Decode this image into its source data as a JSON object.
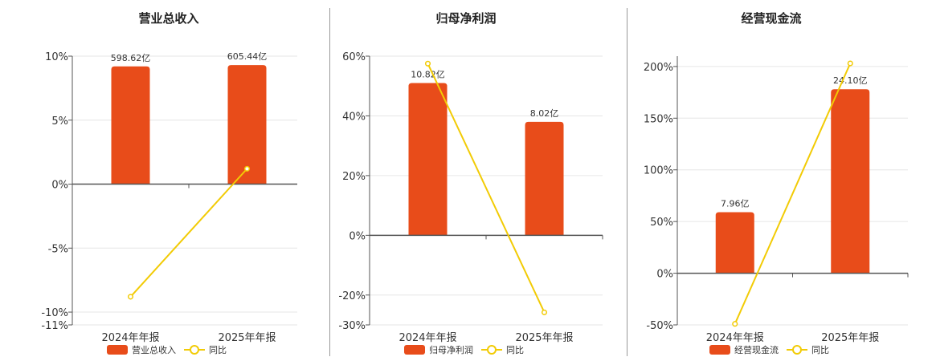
{
  "colors": {
    "bar": "#E84C1A",
    "line": "#F2CB05",
    "grid": "#E6E6E6",
    "axis": "#555555"
  },
  "chart_data": [
    {
      "type": "bar",
      "title": "营业总收入",
      "categories": [
        "2024年年报",
        "2025年年报"
      ],
      "ylim": [
        -11,
        10
      ],
      "yticks": [
        10,
        5,
        0,
        -5,
        -10,
        -11
      ],
      "ytick_labels": [
        "10%",
        "5%",
        "0%",
        "-5%",
        "-10%",
        "-11%"
      ],
      "grid": true,
      "series": [
        {
          "name": "营业总收入",
          "kind": "bar",
          "values": [
            9.2,
            9.3
          ],
          "labels": [
            "598.62亿",
            "605.44亿"
          ]
        },
        {
          "name": "同比",
          "kind": "line",
          "values": [
            -8.8,
            1.2
          ]
        }
      ],
      "legend": {
        "position": "bottom",
        "items": [
          "营业总收入",
          "同比"
        ]
      }
    },
    {
      "type": "bar",
      "title": "归母净利润",
      "categories": [
        "2024年年报",
        "2025年年报"
      ],
      "ylim": [
        -30,
        60
      ],
      "yticks": [
        60,
        40,
        20,
        0,
        -20,
        -30
      ],
      "ytick_labels": [
        "60%",
        "40%",
        "20%",
        "0%",
        "-20%",
        "-30%"
      ],
      "grid": true,
      "series": [
        {
          "name": "归母净利润",
          "kind": "bar",
          "values": [
            51,
            38
          ],
          "labels": [
            "10.82亿",
            "8.02亿"
          ]
        },
        {
          "name": "同比",
          "kind": "line",
          "values": [
            57.5,
            -25.8
          ]
        }
      ],
      "legend": {
        "position": "bottom",
        "items": [
          "归母净利润",
          "同比"
        ]
      }
    },
    {
      "type": "bar",
      "title": "经营现金流",
      "categories": [
        "2024年年报",
        "2025年年报"
      ],
      "ylim": [
        -50,
        210
      ],
      "yticks": [
        200,
        150,
        100,
        50,
        0,
        -50
      ],
      "ytick_labels": [
        "200%",
        "150%",
        "100%",
        "50%",
        "0%",
        "-50%"
      ],
      "grid": true,
      "series": [
        {
          "name": "经营现金流",
          "kind": "bar",
          "values": [
            59,
            178
          ],
          "labels": [
            "7.96亿",
            "24.10亿"
          ]
        },
        {
          "name": "同比",
          "kind": "line",
          "values": [
            -49,
            203
          ]
        }
      ],
      "legend": {
        "position": "bottom",
        "items": [
          "经营现金流",
          "同比"
        ]
      }
    }
  ]
}
